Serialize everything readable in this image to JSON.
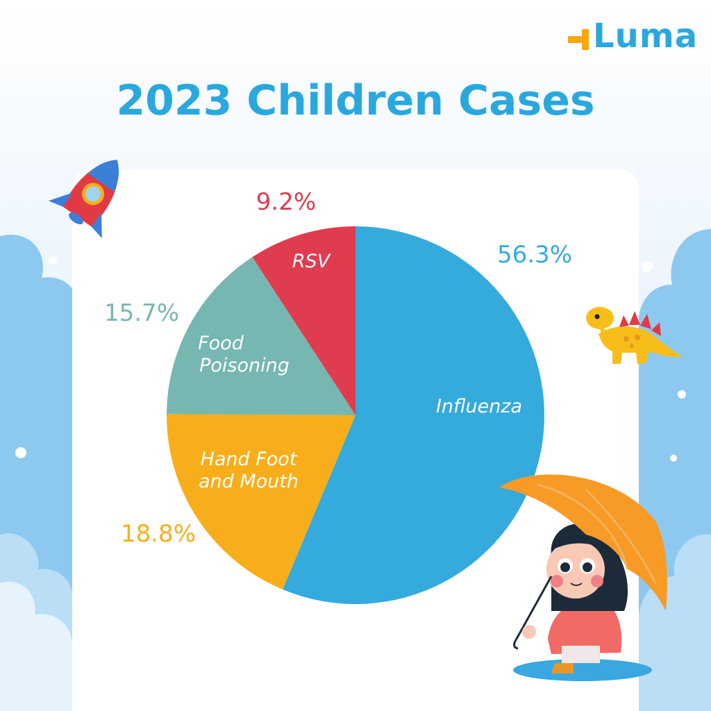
{
  "brand": {
    "logo_text": "Luma",
    "accent": "#2aa8de",
    "plus_color": "#f7a70f"
  },
  "colors": {
    "title": "#2aa8de",
    "card": "#ffffff",
    "sky": "#dcecfa",
    "cloud": "#8dc9ef"
  },
  "chart_data": {
    "type": "pie",
    "title": "2023 Children Cases",
    "start_angle_deg": 0,
    "direction": "clockwise",
    "slices": [
      {
        "name": "Influenza",
        "value": 56.3,
        "label": "56.3%",
        "color": "#35aadc",
        "label_color": "#35aadc",
        "name_color": "#ffffff"
      },
      {
        "name": "Hand Foot and Mouth",
        "value": 18.8,
        "label": "18.8%",
        "color": "#f7ae1a",
        "label_color": "#f7ae1a",
        "name_color": "#ffffff"
      },
      {
        "name": "Food Poisoning",
        "value": 15.7,
        "label": "15.7%",
        "color": "#76b7b2",
        "label_color": "#76b7b2",
        "name_color": "#ffffff"
      },
      {
        "name": "RSV",
        "value": 9.2,
        "label": "9.2%",
        "color": "#e03c50",
        "label_color": "#e03c50",
        "name_color": "#ffffff"
      }
    ],
    "legend": "none"
  },
  "illustrations": [
    "rocket-icon",
    "dinosaur-icon",
    "girl-with-umbrella-icon",
    "cloud-icon"
  ]
}
